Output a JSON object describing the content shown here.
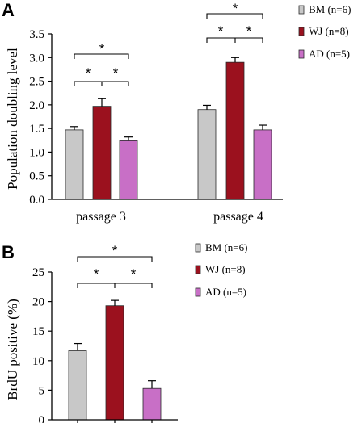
{
  "colors": {
    "BM": "#c8c8c8",
    "WJ": "#9b111e",
    "AD": "#c86fc6",
    "axis": "#000000"
  },
  "panels": [
    {
      "label": "A"
    },
    {
      "label": "B"
    }
  ],
  "chart_data": [
    {
      "type": "bar",
      "panel": "A",
      "ylabel": "Population doubling  level",
      "xlabel": "",
      "ylim": [
        0,
        3.5
      ],
      "yticks": [
        "0.0",
        "0.5",
        "1.0",
        "1.5",
        "2.0",
        "2.5",
        "3.0",
        "3.5"
      ],
      "categories": [
        "passage 3",
        "passage 4"
      ],
      "series": [
        {
          "name": "BM",
          "legend": "BM (n=6)",
          "values": [
            1.47,
            1.9
          ],
          "errors": [
            0.07,
            0.09
          ]
        },
        {
          "name": "WJ",
          "legend": "WJ  (n=8)",
          "values": [
            1.97,
            2.9
          ],
          "errors": [
            0.16,
            0.1
          ]
        },
        {
          "name": "AD",
          "legend": "AD  (n=5)",
          "values": [
            1.24,
            1.47
          ],
          "errors": [
            0.08,
            0.1
          ]
        }
      ],
      "significance": "*",
      "legend_position": "top-right"
    },
    {
      "type": "bar",
      "panel": "B",
      "ylabel": "BrdU positive (%)",
      "xlabel": "",
      "ylim": [
        0,
        25
      ],
      "yticks": [
        "0",
        "5",
        "10",
        "15",
        "20",
        "25"
      ],
      "categories": [
        ""
      ],
      "series": [
        {
          "name": "BM",
          "legend": "BM (n=6)",
          "values": [
            11.7
          ],
          "errors": [
            1.2
          ]
        },
        {
          "name": "WJ",
          "legend": "WJ  (n=8)",
          "values": [
            19.3
          ],
          "errors": [
            0.9
          ]
        },
        {
          "name": "AD",
          "legend": "AD  (n=5)",
          "values": [
            5.3
          ],
          "errors": [
            1.3
          ]
        }
      ],
      "significance": "*",
      "legend_position": "top-right"
    }
  ]
}
